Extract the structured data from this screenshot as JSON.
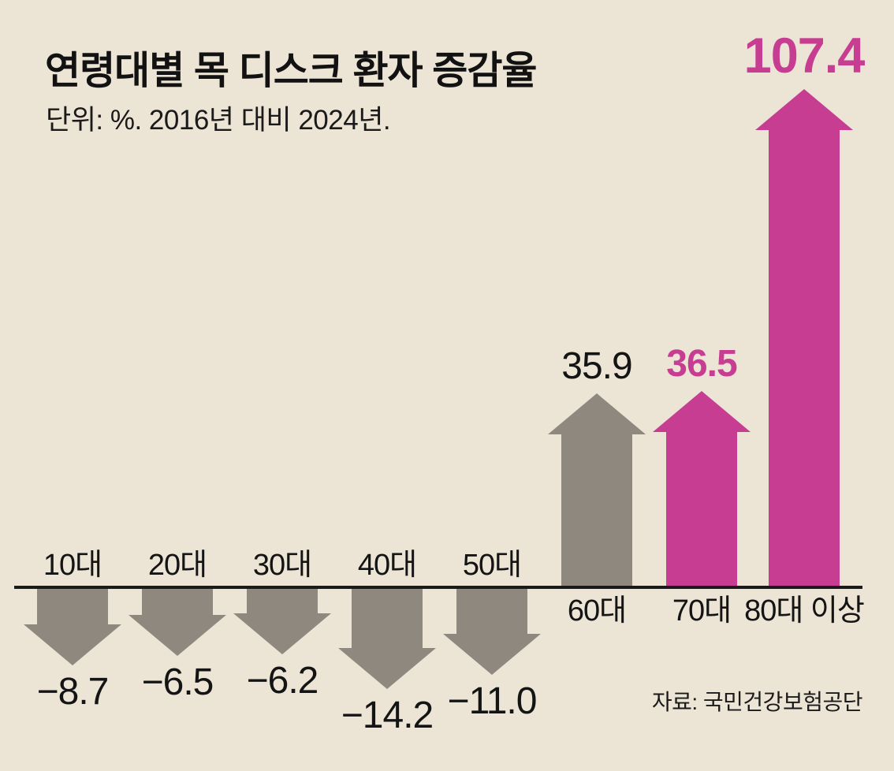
{
  "header": {
    "title": "연령대별 목 디스크 환자 증감율",
    "subtitle": "단위: %. 2016년 대비 2024년."
  },
  "source": "자료: 국민건강보험공단",
  "colors": {
    "background": "#ece4d5",
    "gray": "#8e887f",
    "pink": "#c73d92",
    "baseline": "#1a1a1a",
    "text": "#141414"
  },
  "chart_data": {
    "type": "bar",
    "title": "연령대별 목 디스크 환자 증감율",
    "unit": "%",
    "comparison": "2016년 대비 2024년",
    "legend": "none",
    "grid": false,
    "categories": [
      "10대",
      "20대",
      "30대",
      "40대",
      "50대",
      "60대",
      "70대",
      "80대 이상"
    ],
    "values": [
      -8.7,
      -6.5,
      -6.2,
      -14.2,
      -11.0,
      35.9,
      36.5,
      107.4
    ],
    "value_labels": [
      "−8.7",
      "−6.5",
      "−6.2",
      "−14.2",
      "−11.0",
      "35.9",
      "36.5",
      "107.4"
    ],
    "bar_colors": [
      "gray",
      "gray",
      "gray",
      "gray",
      "gray",
      "gray",
      "pink",
      "pink"
    ],
    "value_label_styles": [
      "black",
      "black",
      "black",
      "black",
      "black",
      "black",
      "pink",
      "pink-big"
    ]
  }
}
